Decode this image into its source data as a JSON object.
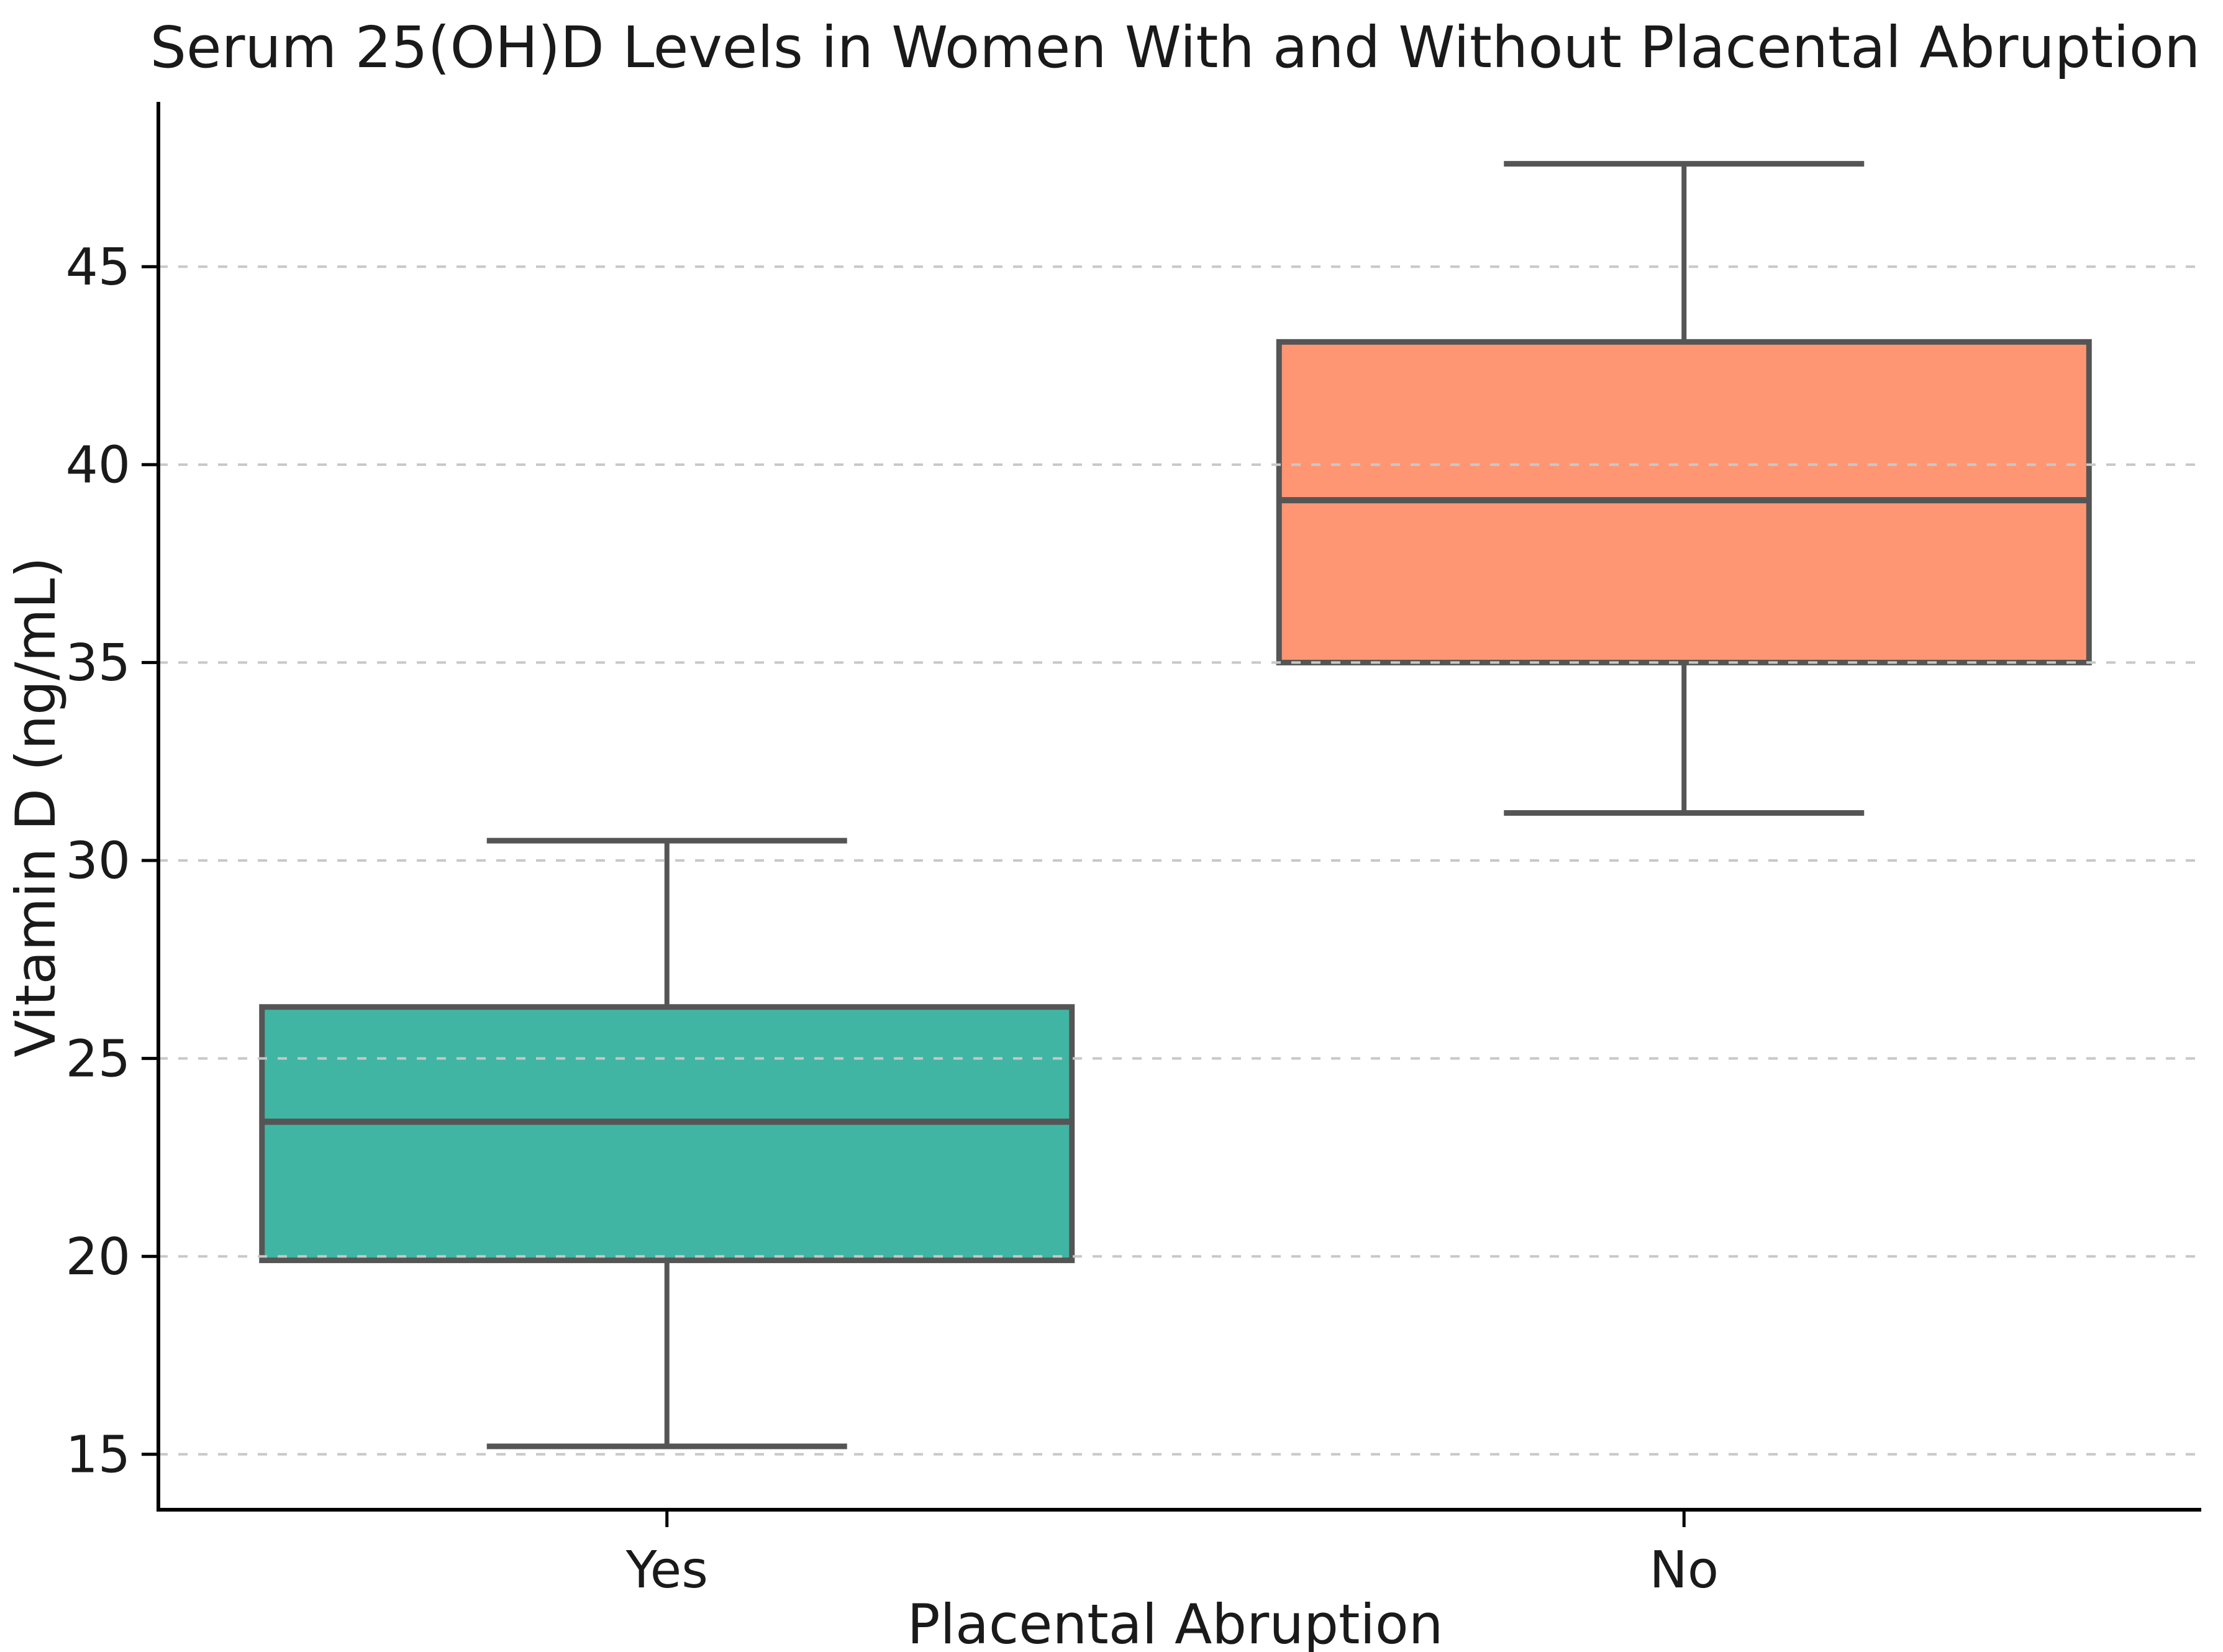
{
  "chart_data": {
    "type": "box",
    "title": "Serum 25(OH)D Levels in Women With and Without Placental Abruption",
    "xlabel": "Placental Abruption",
    "ylabel": "Vitamin D (ng/mL)",
    "categories": [
      "Yes",
      "No"
    ],
    "series": [
      {
        "label": "Yes",
        "whisker_low": 15.2,
        "q1": 19.9,
        "median": 23.4,
        "q3": 26.3,
        "whisker_high": 30.5,
        "fill_color": "#40B5A3"
      },
      {
        "label": "No",
        "whisker_low": 31.2,
        "q1": 35.0,
        "median": 39.1,
        "q3": 43.1,
        "whisker_high": 47.6,
        "fill_color": "#FF9673"
      }
    ],
    "y_ticks": [
      15,
      20,
      25,
      30,
      35,
      40,
      45
    ],
    "ylim": [
      13.6,
      49.1
    ],
    "grid": "horizontal-dashed",
    "legend": "none",
    "colors": {
      "box_edge": "#555555",
      "median_line": "#555555",
      "whisker": "#555555",
      "grid_line": "#c8c8c8",
      "axis_spine": "#000000",
      "text": "#1a1a1a"
    }
  }
}
